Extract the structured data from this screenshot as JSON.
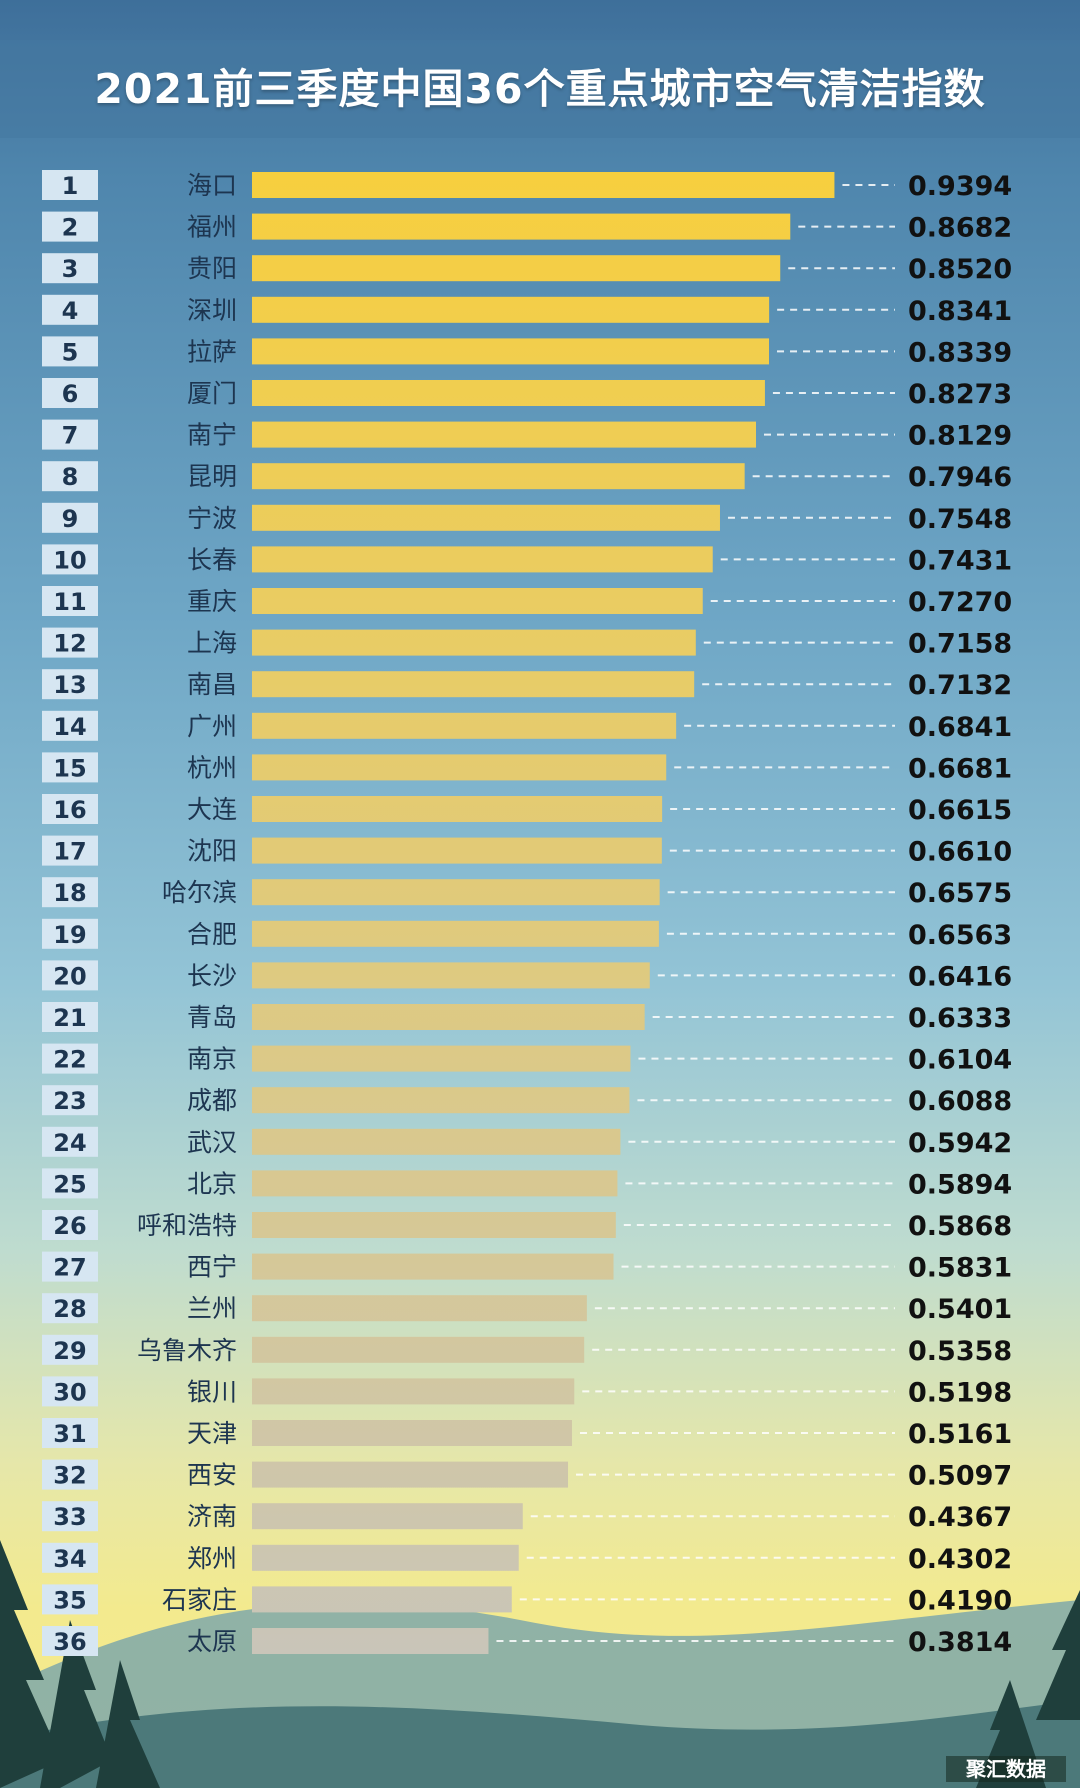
{
  "title": "2021前三季度中国36个重点城市空气清洁指数",
  "watermark": "聚汇数据",
  "colors": {
    "bar_top": "#f7cf3e",
    "bar_bottom": "#c9c5b9",
    "rank_badge": "#d6e6f2",
    "rank_text": "#1d3550",
    "city_text": "#1d3550",
    "value_text": "#111111"
  },
  "chart_data": {
    "type": "bar",
    "orientation": "horizontal",
    "ranks": [
      "1",
      "2",
      "3",
      "4",
      "5",
      "6",
      "7",
      "8",
      "9",
      "10",
      "11",
      "12",
      "13",
      "14",
      "15",
      "16",
      "17",
      "18",
      "19",
      "20",
      "21",
      "22",
      "23",
      "24",
      "25",
      "26",
      "27",
      "28",
      "29",
      "30",
      "31",
      "32",
      "33",
      "34",
      "35",
      "36"
    ],
    "categories": [
      "海口",
      "福州",
      "贵阳",
      "深圳",
      "拉萨",
      "厦门",
      "南宁",
      "昆明",
      "宁波",
      "长春",
      "重庆",
      "上海",
      "南昌",
      "广州",
      "杭州",
      "大连",
      "沈阳",
      "哈尔滨",
      "合肥",
      "长沙",
      "青岛",
      "南京",
      "成都",
      "武汉",
      "北京",
      "呼和浩特",
      "西宁",
      "兰州",
      "乌鲁木齐",
      "银川",
      "天津",
      "西安",
      "济南",
      "郑州",
      "石家庄",
      "太原"
    ],
    "values": [
      0.9394,
      0.8682,
      0.852,
      0.8341,
      0.8339,
      0.8273,
      0.8129,
      0.7946,
      0.7548,
      0.7431,
      0.727,
      0.7158,
      0.7132,
      0.6841,
      0.6681,
      0.6615,
      0.661,
      0.6575,
      0.6563,
      0.6416,
      0.6333,
      0.6104,
      0.6088,
      0.5942,
      0.5894,
      0.5868,
      0.5831,
      0.5401,
      0.5358,
      0.5198,
      0.5161,
      0.5097,
      0.4367,
      0.4302,
      0.419,
      0.3814
    ],
    "value_labels": [
      "0.9394",
      "0.8682",
      "0.8520",
      "0.8341",
      "0.8339",
      "0.8273",
      "0.8129",
      "0.7946",
      "0.7548",
      "0.7431",
      "0.7270",
      "0.7158",
      "0.7132",
      "0.6841",
      "0.6681",
      "0.6615",
      "0.6610",
      "0.6575",
      "0.6563",
      "0.6416",
      "0.6333",
      "0.6104",
      "0.6088",
      "0.5942",
      "0.5894",
      "0.5868",
      "0.5831",
      "0.5401",
      "0.5358",
      "0.5198",
      "0.5161",
      "0.5097",
      "0.4367",
      "0.4302",
      "0.4190",
      "0.3814"
    ],
    "xlim": [
      0,
      1
    ],
    "grid": false,
    "legend": "none"
  }
}
